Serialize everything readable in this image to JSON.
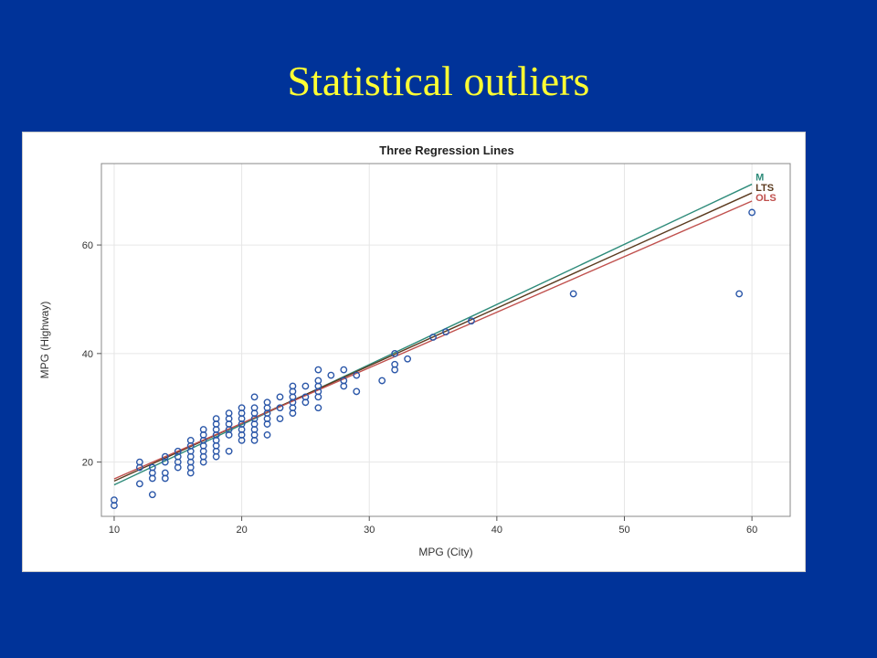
{
  "slide": {
    "title": "Statistical outliers",
    "background": "#003399",
    "title_color": "#ffff33"
  },
  "chart_data": {
    "type": "scatter",
    "title": "Three Regression Lines",
    "xlabel": "MPG (City)",
    "ylabel": "MPG (Highway)",
    "xlim": [
      9,
      63
    ],
    "ylim": [
      10,
      75
    ],
    "xticks": [
      10,
      20,
      30,
      40,
      50,
      60
    ],
    "yticks": [
      20,
      40,
      60
    ],
    "grid": true,
    "marker_color": "#2a56a8",
    "points": [
      [
        10,
        12
      ],
      [
        10,
        13
      ],
      [
        12,
        16
      ],
      [
        12,
        19
      ],
      [
        12,
        20
      ],
      [
        13,
        14
      ],
      [
        13,
        17
      ],
      [
        13,
        18
      ],
      [
        13,
        19
      ],
      [
        14,
        17
      ],
      [
        14,
        18
      ],
      [
        14,
        20
      ],
      [
        14,
        21
      ],
      [
        15,
        19
      ],
      [
        15,
        20
      ],
      [
        15,
        21
      ],
      [
        15,
        22
      ],
      [
        16,
        18
      ],
      [
        16,
        19
      ],
      [
        16,
        20
      ],
      [
        16,
        21
      ],
      [
        16,
        22
      ],
      [
        16,
        23
      ],
      [
        16,
        24
      ],
      [
        17,
        20
      ],
      [
        17,
        21
      ],
      [
        17,
        22
      ],
      [
        17,
        23
      ],
      [
        17,
        24
      ],
      [
        17,
        25
      ],
      [
        17,
        26
      ],
      [
        18,
        21
      ],
      [
        18,
        22
      ],
      [
        18,
        23
      ],
      [
        18,
        24
      ],
      [
        18,
        25
      ],
      [
        18,
        26
      ],
      [
        18,
        27
      ],
      [
        18,
        28
      ],
      [
        19,
        22
      ],
      [
        19,
        25
      ],
      [
        19,
        26
      ],
      [
        19,
        27
      ],
      [
        19,
        28
      ],
      [
        19,
        29
      ],
      [
        20,
        24
      ],
      [
        20,
        25
      ],
      [
        20,
        26
      ],
      [
        20,
        27
      ],
      [
        20,
        28
      ],
      [
        20,
        29
      ],
      [
        20,
        30
      ],
      [
        21,
        24
      ],
      [
        21,
        25
      ],
      [
        21,
        26
      ],
      [
        21,
        27
      ],
      [
        21,
        28
      ],
      [
        21,
        29
      ],
      [
        21,
        30
      ],
      [
        21,
        32
      ],
      [
        22,
        25
      ],
      [
        22,
        27
      ],
      [
        22,
        28
      ],
      [
        22,
        29
      ],
      [
        22,
        30
      ],
      [
        22,
        31
      ],
      [
        23,
        28
      ],
      [
        23,
        30
      ],
      [
        23,
        32
      ],
      [
        24,
        29
      ],
      [
        24,
        30
      ],
      [
        24,
        31
      ],
      [
        24,
        32
      ],
      [
        24,
        33
      ],
      [
        24,
        34
      ],
      [
        25,
        31
      ],
      [
        25,
        32
      ],
      [
        25,
        34
      ],
      [
        26,
        30
      ],
      [
        26,
        32
      ],
      [
        26,
        33
      ],
      [
        26,
        34
      ],
      [
        26,
        35
      ],
      [
        26,
        37
      ],
      [
        27,
        36
      ],
      [
        28,
        34
      ],
      [
        28,
        35
      ],
      [
        28,
        37
      ],
      [
        29,
        33
      ],
      [
        29,
        36
      ],
      [
        31,
        35
      ],
      [
        32,
        37
      ],
      [
        32,
        38
      ],
      [
        32,
        40
      ],
      [
        33,
        39
      ],
      [
        35,
        43
      ],
      [
        36,
        44
      ],
      [
        38,
        46
      ],
      [
        46,
        51
      ],
      [
        59,
        51
      ],
      [
        60,
        66
      ]
    ],
    "lines": [
      {
        "name": "M",
        "color": "#2e8b7a",
        "x": [
          10,
          60
        ],
        "y": [
          15.8,
          71.2
        ]
      },
      {
        "name": "LTS",
        "color": "#5b3a1e",
        "x": [
          10,
          60
        ],
        "y": [
          16.5,
          69.6
        ]
      },
      {
        "name": "OLS",
        "color": "#c0504d",
        "x": [
          10,
          60
        ],
        "y": [
          16.9,
          68.1
        ]
      }
    ]
  }
}
